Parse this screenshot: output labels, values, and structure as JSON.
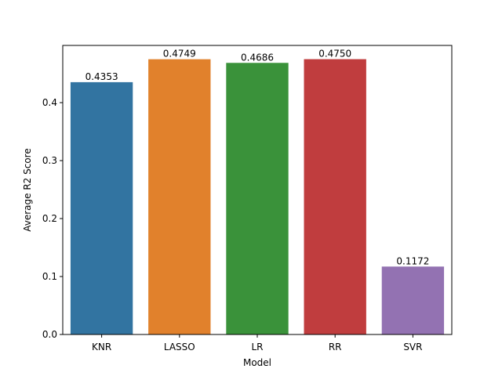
{
  "chart_data": {
    "type": "bar",
    "categories": [
      "KNR",
      "LASSO",
      "LR",
      "RR",
      "SVR"
    ],
    "values": [
      0.4353,
      0.4749,
      0.4686,
      0.475,
      0.1172
    ],
    "data_labels": [
      "0.4353",
      "0.4749",
      "0.4686",
      "0.4750",
      "0.1172"
    ],
    "colors": [
      "#3274a1",
      "#e1812c",
      "#3a923a",
      "#c03d3e",
      "#9372b2"
    ],
    "xlabel": "Model",
    "ylabel": "Average R2 Score",
    "ylim": [
      0,
      0.4987
    ],
    "yticks": [
      0.0,
      0.1,
      0.2,
      0.3,
      0.4
    ],
    "ytick_labels": [
      "0.0",
      "0.1",
      "0.2",
      "0.3",
      "0.4"
    ],
    "grid": false,
    "legend": "none"
  }
}
